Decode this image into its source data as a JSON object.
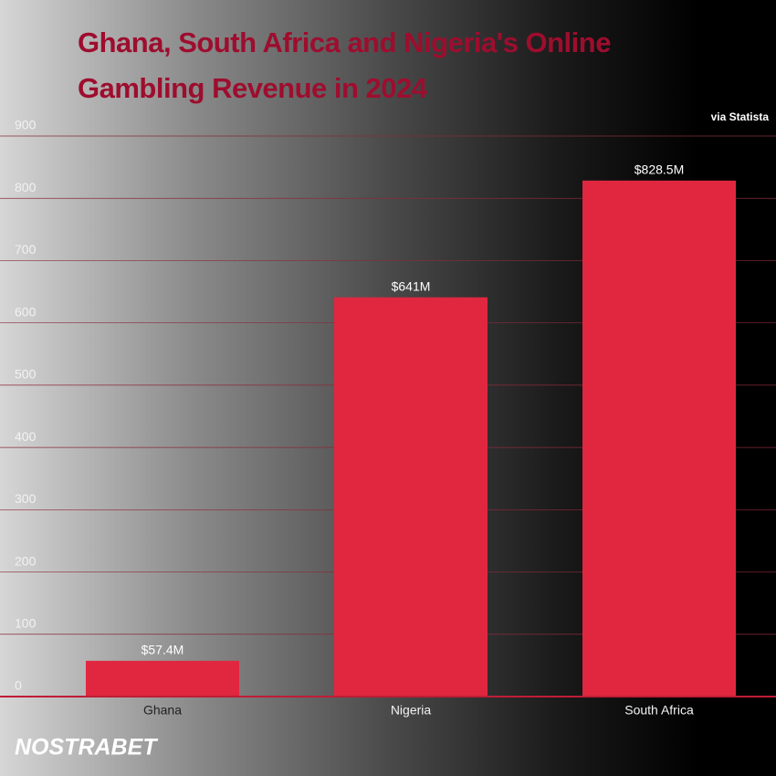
{
  "chart_data": {
    "type": "bar",
    "title": "Ghana, South Africa and Nigeria's Online Gambling Revenue in 2024",
    "source": "via Statista",
    "logo": "NOSTRABET",
    "categories": [
      "Ghana",
      "Nigeria",
      "South Africa"
    ],
    "values": [
      57.4,
      641,
      828.5
    ],
    "value_labels": [
      "$57.4M",
      "$641M",
      "$828.5M"
    ],
    "color": "#e0273f",
    "ylim": [
      0,
      900
    ],
    "yticks": [
      0,
      100,
      200,
      300,
      400,
      500,
      600,
      700,
      800,
      900
    ],
    "grid": true
  }
}
